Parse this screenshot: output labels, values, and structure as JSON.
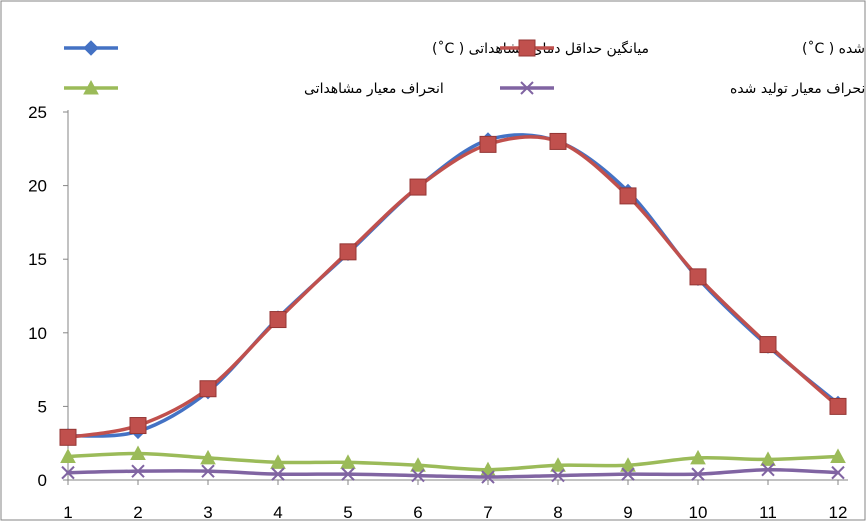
{
  "chart_data": {
    "type": "line",
    "x": [
      1,
      2,
      3,
      4,
      5,
      6,
      7,
      8,
      9,
      10,
      11,
      12
    ],
    "xlim": [
      1,
      12
    ],
    "ylim": [
      0,
      25
    ],
    "yticks": [
      0,
      5,
      10,
      15,
      20,
      25
    ],
    "xticks": [
      1,
      2,
      3,
      4,
      5,
      6,
      7,
      8,
      9,
      10,
      11,
      12
    ],
    "grid": false,
    "legend_position": "top",
    "series": [
      {
        "name": "میانگین حداقل دمای مشاهداتی ( C˚)",
        "color": "#4472C4",
        "marker": "diamond",
        "smooth": true,
        "values": [
          3.0,
          3.3,
          6.0,
          11.0,
          15.4,
          19.9,
          23.1,
          23.0,
          19.6,
          13.7,
          9.1,
          5.2
        ]
      },
      {
        "name": "میانگین حداقل دمای تولید شده ( C˚)",
        "color": "#C0504D",
        "marker": "square",
        "smooth": true,
        "values": [
          2.9,
          3.7,
          6.2,
          10.9,
          15.5,
          19.9,
          22.8,
          23.0,
          19.3,
          13.8,
          9.2,
          5.0
        ]
      },
      {
        "name": "انحراف معیار مشاهداتی",
        "color": "#9BBB59",
        "marker": "triangle",
        "smooth": true,
        "values": [
          1.6,
          1.8,
          1.5,
          1.2,
          1.2,
          1.0,
          0.7,
          1.0,
          1.0,
          1.5,
          1.4,
          1.6
        ]
      },
      {
        "name": "انحراف معیار تولید شده",
        "color": "#8064A2",
        "marker": "x",
        "smooth": true,
        "values": [
          0.5,
          0.6,
          0.6,
          0.4,
          0.4,
          0.3,
          0.2,
          0.3,
          0.4,
          0.4,
          0.7,
          0.5
        ]
      }
    ]
  }
}
